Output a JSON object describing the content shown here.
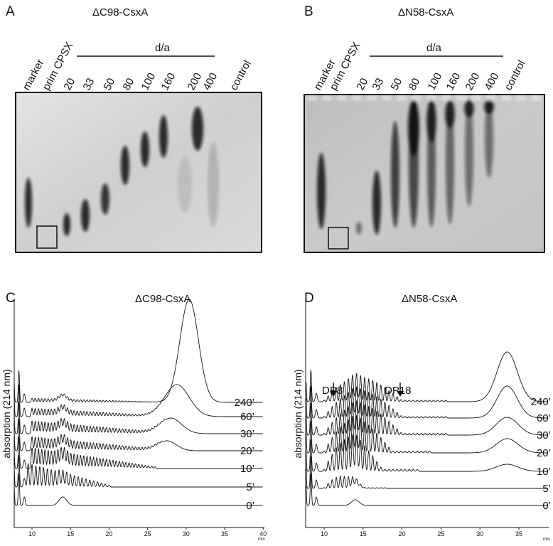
{
  "panels": [
    {
      "label": "A",
      "title": "ΔC98-CsxA",
      "group_label": "d/a",
      "lanes": [
        "marker",
        "prim CPSX",
        "20",
        "33",
        "50",
        "80",
        "100",
        "160",
        "200",
        "400",
        "control"
      ]
    },
    {
      "label": "B",
      "title": "ΔN58-CsxA",
      "group_label": "d/a",
      "lanes": [
        "marker",
        "prim CPSX",
        "20",
        "33",
        "50",
        "80",
        "100",
        "160",
        "200",
        "400",
        "control"
      ]
    },
    {
      "label": "C",
      "title": "ΔC98-CsxA",
      "y_label": "absorption (214 nm)",
      "x_ticks": [
        "10",
        "15",
        "20",
        "25",
        "30",
        "35",
        "40"
      ],
      "x_unit": "min",
      "traces": [
        "240’",
        "60’",
        "30’",
        "20’",
        "10’",
        "5’",
        "0’"
      ]
    },
    {
      "label": "D",
      "title": "ΔN58-CsxA",
      "y_label": "absorption (214 nm)",
      "x_ticks": [
        "10",
        "15",
        "20",
        "25",
        "30",
        "35"
      ],
      "x_unit": "min",
      "traces": [
        "240’",
        "60’",
        "30’",
        "20’",
        "10’",
        "5’",
        "0’"
      ],
      "annotations": [
        "DP8",
        "DP18"
      ]
    }
  ]
}
